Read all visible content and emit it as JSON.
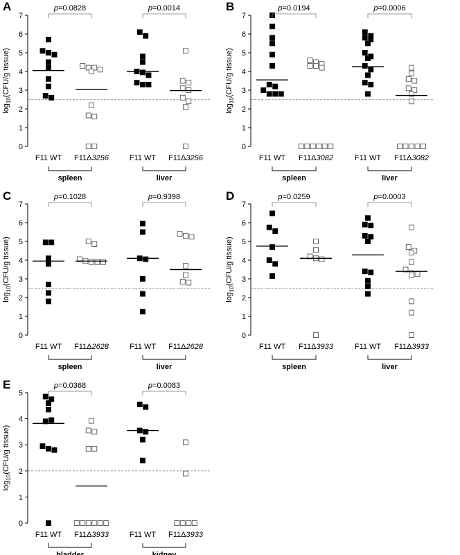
{
  "chart_data": [
    {
      "type": "scatter",
      "panel": "A",
      "ylabel_prefix": "log",
      "ylabel_sub": "10",
      "ylabel_suffix": "(CFU/g tissue)",
      "ylim": [
        0,
        7
      ],
      "yticks": [
        "0",
        "1",
        "2",
        "3",
        "4",
        "5",
        "6",
        "7"
      ],
      "detection_limit": 2.5,
      "categories": [
        {
          "prefix": "F11 WT",
          "italic": "",
          "filled": true,
          "values": [
            5.7,
            5.1,
            5.0,
            4.9,
            4.5,
            4.2,
            3.6,
            3.2,
            2.7,
            2.6
          ],
          "median": 4.05
        },
        {
          "prefix": "F11Δ",
          "italic": "3256",
          "filled": false,
          "values": [
            4.3,
            4.2,
            4.2,
            4.1,
            4.0,
            2.2,
            1.65,
            1.6,
            0,
            0
          ],
          "median": 3.05
        },
        {
          "prefix": "F11 WT",
          "italic": "",
          "filled": true,
          "values": [
            6.1,
            5.9,
            4.8,
            4.5,
            4.0,
            3.95,
            3.8,
            3.4,
            3.3,
            3.3
          ],
          "median": 4.0
        },
        {
          "prefix": "F11Δ",
          "italic": "3256",
          "filled": false,
          "values": [
            5.1,
            3.5,
            3.4,
            3.1,
            3.0,
            2.6,
            2.4,
            2.1,
            0
          ],
          "median": 2.98
        }
      ],
      "groups": [
        "spleen",
        "liver"
      ],
      "pvalues": [
        {
          "label": "p",
          "value": "=0.0828"
        },
        {
          "label": "p",
          "value": "=0.0014"
        }
      ]
    },
    {
      "type": "scatter",
      "panel": "B",
      "ylabel_prefix": "log",
      "ylabel_sub": "10",
      "ylabel_suffix": "(CFU/g tissue)",
      "ylim": [
        0,
        7
      ],
      "yticks": [
        "0",
        "1",
        "2",
        "3",
        "4",
        "5",
        "6",
        "7"
      ],
      "detection_limit": 2.5,
      "categories": [
        {
          "prefix": "F11 WT",
          "italic": "",
          "filled": true,
          "values": [
            7.0,
            6.4,
            5.8,
            5.5,
            4.9,
            4.3,
            3.3,
            3.2,
            3.0,
            2.8,
            2.8,
            2.8
          ],
          "median": 3.55
        },
        {
          "prefix": "F11Δ",
          "italic": "3082",
          "filled": false,
          "values": [
            4.6,
            4.5,
            4.4,
            4.3,
            4.3,
            4.2,
            0,
            0,
            0,
            0,
            0,
            0
          ],
          "median": null
        },
        {
          "prefix": "F11 WT",
          "italic": "",
          "filled": true,
          "values": [
            6.1,
            5.9,
            5.8,
            5.7,
            5.5,
            5.0,
            4.8,
            4.7,
            4.3,
            4.1,
            3.8,
            3.4,
            3.3,
            2.8
          ],
          "median": 4.25
        },
        {
          "prefix": "F11Δ",
          "italic": "3082",
          "filled": false,
          "values": [
            4.2,
            3.9,
            3.6,
            3.5,
            3.1,
            3.0,
            2.8,
            2.4,
            0,
            0,
            0,
            0,
            0
          ],
          "median": 2.72
        }
      ],
      "groups": [
        "spleen",
        "liver"
      ],
      "pvalues": [
        {
          "label": "p",
          "value": "=0.0194"
        },
        {
          "label": "p",
          "value": "=0.0006"
        }
      ]
    },
    {
      "type": "scatter",
      "panel": "C",
      "ylabel_prefix": "log",
      "ylabel_sub": "10",
      "ylabel_suffix": "(CFU/g tissue)",
      "ylim": [
        0,
        7
      ],
      "yticks": [
        "0",
        "1",
        "2",
        "3",
        "4",
        "5",
        "6",
        "7"
      ],
      "detection_limit": 2.5,
      "categories": [
        {
          "prefix": "F11 WT",
          "italic": "",
          "filled": true,
          "values": [
            4.95,
            4.95,
            4.1,
            3.8,
            2.7,
            2.25,
            1.8
          ],
          "median": 3.95
        },
        {
          "prefix": "F11Δ",
          "italic": "2628",
          "filled": false,
          "values": [
            5.0,
            4.85,
            4.05,
            3.95,
            3.9,
            3.9,
            3.9
          ],
          "median": 3.95
        },
        {
          "prefix": "F11 WT",
          "italic": "",
          "filled": true,
          "values": [
            5.95,
            5.5,
            4.1,
            4.05,
            3.0,
            2.2,
            1.25
          ],
          "median": 4.1
        },
        {
          "prefix": "F11Δ",
          "italic": "2628",
          "filled": false,
          "values": [
            5.4,
            5.3,
            5.25,
            3.7,
            3.2,
            2.85,
            2.8
          ],
          "median": 3.5
        }
      ],
      "groups": [
        "spleen",
        "liver"
      ],
      "pvalues": [
        {
          "label": "p",
          "value": "=0.1028"
        },
        {
          "label": "p",
          "value": "=0.9398"
        }
      ]
    },
    {
      "type": "scatter",
      "panel": "D",
      "ylabel_prefix": "log",
      "ylabel_sub": "10",
      "ylabel_suffix": "(CFU/g tissue)",
      "ylim": [
        0,
        7
      ],
      "yticks": [
        "0",
        "1",
        "2",
        "3",
        "4",
        "5",
        "6",
        "7"
      ],
      "detection_limit": 2.5,
      "categories": [
        {
          "prefix": "F11 WT",
          "italic": "",
          "filled": true,
          "values": [
            6.5,
            5.75,
            5.55,
            4.7,
            4.0,
            3.8,
            3.15
          ],
          "median": 4.75
        },
        {
          "prefix": "F11Δ",
          "italic": "3933",
          "filled": false,
          "values": [
            5.0,
            4.55,
            4.2,
            4.1,
            4.05,
            0
          ],
          "median": 4.1
        },
        {
          "prefix": "F11 WT",
          "italic": "",
          "filled": true,
          "values": [
            6.25,
            5.9,
            5.85,
            5.3,
            5.25,
            5.0,
            3.4,
            3.35,
            2.9,
            2.6,
            2.2
          ],
          "median": 4.28
        },
        {
          "prefix": "F11Δ",
          "italic": "3933",
          "filled": false,
          "values": [
            5.75,
            4.7,
            4.5,
            4.4,
            3.9,
            3.5,
            3.3,
            3.25,
            3.2,
            1.8,
            1.2,
            0
          ],
          "median": 3.4
        }
      ],
      "groups": [
        "spleen",
        "liver"
      ],
      "pvalues": [
        {
          "label": "p",
          "value": "=0.0259"
        },
        {
          "label": "p",
          "value": "=0.0003"
        }
      ]
    },
    {
      "type": "scatter",
      "panel": "E",
      "ylabel_prefix": "log",
      "ylabel_sub": "10",
      "ylabel_suffix": "(CFU/g tissue)",
      "ylim": [
        0,
        5
      ],
      "yticks": [
        "0",
        "1",
        "2",
        "3",
        "4",
        "5"
      ],
      "detection_limit": 2.0,
      "categories": [
        {
          "prefix": "F11 WT",
          "italic": "",
          "filled": true,
          "values": [
            4.85,
            4.75,
            4.6,
            4.35,
            3.9,
            3.95,
            2.95,
            2.85,
            2.8,
            0
          ],
          "median": 3.82
        },
        {
          "prefix": "F11Δ",
          "italic": "3933",
          "filled": false,
          "values": [
            3.92,
            3.55,
            3.5,
            2.85,
            2.85,
            0,
            0,
            0,
            0,
            0,
            0
          ],
          "median": 1.42
        },
        {
          "prefix": "F11 WT",
          "italic": "",
          "filled": true,
          "values": [
            4.55,
            4.45,
            3.55,
            3.5,
            3.2,
            2.4
          ],
          "median": 3.55
        },
        {
          "prefix": "F11Δ",
          "italic": "3933",
          "filled": false,
          "values": [
            3.1,
            1.9,
            0,
            0,
            0,
            0
          ],
          "median": null
        }
      ],
      "groups": [
        "bladder",
        "kidney"
      ],
      "pvalues": [
        {
          "label": "p",
          "value": "=0.0368"
        },
        {
          "label": "p",
          "value": "=0.0083"
        }
      ]
    }
  ]
}
